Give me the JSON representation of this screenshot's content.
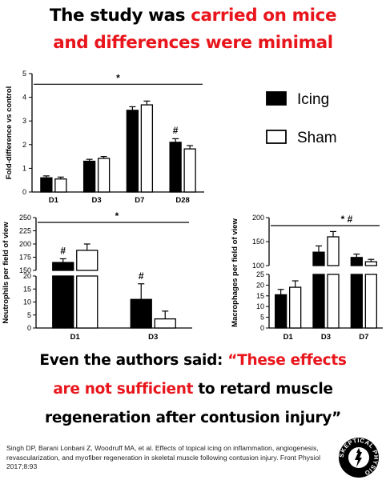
{
  "headline": {
    "line1_black": "The study was ",
    "line1_red": "carried on mice",
    "line2_red": "and differences were minimal"
  },
  "legend": {
    "items": [
      {
        "label": "Icing",
        "color": "#000000"
      },
      {
        "label": "Sham",
        "color": "#ffffff"
      }
    ],
    "placement": "right of top chart"
  },
  "chart_data": [
    {
      "type": "bar",
      "ylabel": "Fold-difference vs control",
      "categories": [
        "D1",
        "D3",
        "D7",
        "D28"
      ],
      "ylim": [
        0,
        5
      ],
      "yticks": [
        "0",
        "1",
        "2",
        "3",
        "4",
        "5"
      ],
      "series": [
        {
          "name": "Icing",
          "values": [
            0.6,
            1.3,
            3.45,
            2.1
          ],
          "errors": [
            0.08,
            0.08,
            0.15,
            0.15
          ]
        },
        {
          "name": "Sham",
          "values": [
            0.55,
            1.42,
            3.68,
            1.82
          ],
          "errors": [
            0.08,
            0.08,
            0.16,
            0.14
          ]
        }
      ],
      "significance_bracket": "*",
      "markers": [
        {
          "category": "D28",
          "text": "#"
        }
      ]
    },
    {
      "type": "bar",
      "ylabel": "Neutrophils per field of view",
      "categories": [
        "D1",
        "D3"
      ],
      "broken_axis": {
        "lower": [
          0,
          20
        ],
        "upper": [
          150,
          250
        ]
      },
      "yticks": [
        "0",
        "5",
        "10",
        "15",
        "20",
        "150",
        "175",
        "200",
        "225",
        "250"
      ],
      "series": [
        {
          "name": "Icing",
          "values": [
            165,
            11
          ],
          "errors": [
            7,
            6
          ]
        },
        {
          "name": "Sham",
          "values": [
            188,
            3.5
          ],
          "errors": [
            12,
            3
          ]
        }
      ],
      "significance_bracket": "*",
      "markers": [
        {
          "category": "D1",
          "text": "#"
        },
        {
          "category": "D3",
          "text": "#"
        }
      ]
    },
    {
      "type": "bar",
      "ylabel": "Macrophages per field of view",
      "categories": [
        "D1",
        "D3",
        "D7"
      ],
      "broken_axis": {
        "lower": [
          0,
          25
        ],
        "upper": [
          100,
          200
        ]
      },
      "yticks": [
        "0",
        "5",
        "10",
        "15",
        "20",
        "25",
        "100",
        "150",
        "200"
      ],
      "series": [
        {
          "name": "Icing",
          "values": [
            15.5,
            128,
            117
          ],
          "errors": [
            2.5,
            13,
            7
          ]
        },
        {
          "name": "Sham",
          "values": [
            19,
            160,
            108
          ],
          "errors": [
            3,
            11,
            5
          ]
        }
      ],
      "significance_bracket": "* #"
    }
  ],
  "quote": {
    "l1_black": "Even the authors said: ",
    "l1_red": "“These effects",
    "l2_red": "are not sufficient",
    "l2_black": " to retard muscle",
    "l3_black": "regeneration after contusion injury”"
  },
  "citation": "Singh DP, Barani Lonbani Z, Woodruff MA, et al. Effects of topical icing on inflammation, angiogenesis, revascularization, and myofiber regeneration in skeletal muscle following contusion injury. Front Physiol 2017;8:93",
  "logo": {
    "text": "SKEPTICAL PHYSIO"
  }
}
